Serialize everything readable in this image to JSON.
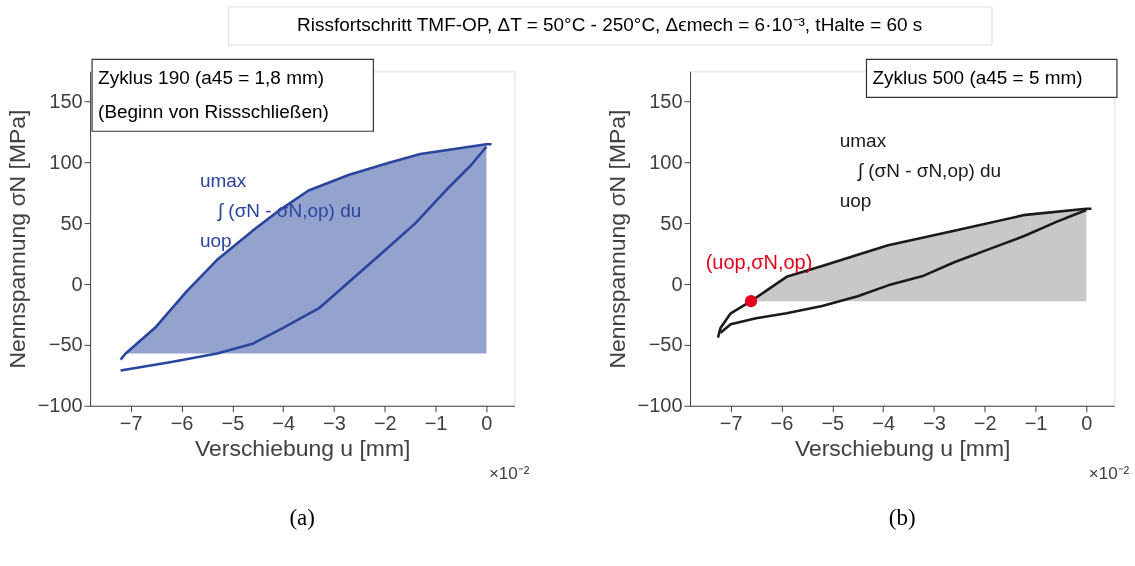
{
  "chart_data": [
    {
      "type": "other",
      "title": "Rissfortschritt TMF-OP,  ΔT = 50°C - 250°C,  Δϵmech = 6·10⁻³, tHalte = 60 s"
    },
    {
      "type": "line",
      "title": "Zyklus 190 (a45 = 1,8 mm)",
      "subtitle": "(Beginn von Rissschließen)",
      "xlabel": "Verschiebung u [mm]",
      "ylabel": "Nennspannung σN [MPa]",
      "xlim": [
        -7.8,
        0.55
      ],
      "ylim": [
        -100,
        175
      ],
      "xticks": [
        -7,
        -6,
        -5,
        -4,
        -3,
        -2,
        -1,
        0
      ],
      "yticks": [
        -100,
        -50,
        0,
        50,
        100,
        150
      ],
      "grid": false,
      "series": [
        {
          "color": "#2a459e",
          "x": [
            -7.2,
            -7.1,
            -6.5,
            -5.9,
            -5.3,
            -4.6,
            -4.1,
            -3.5,
            -2.7,
            -1.9,
            -1.3,
            0,
            0.1
          ],
          "values": [
            -62,
            -57,
            -35,
            -6,
            20,
            44,
            60,
            77,
            90,
            100,
            107,
            115,
            115
          ],
          "lower": [
            null,
            -57,
            -57,
            -57,
            -57,
            -57,
            -57,
            -57,
            -57,
            -57,
            -57,
            -57,
            null
          ],
          "upper": [
            null,
            -57,
            -35,
            -6,
            20,
            44,
            60,
            77,
            90,
            100,
            107,
            115,
            null
          ]
        },
        {
          "color": "#2a459e",
          "x": [
            -7.2,
            -6.2,
            -5.3,
            -4.6,
            -4,
            -3.3,
            -2.7,
            -2.1,
            -1.4,
            -0.8,
            -0.3,
            0
          ],
          "values": [
            -71,
            -64,
            -57,
            -49,
            -36,
            -20,
            2,
            24,
            50,
            77,
            98,
            113
          ]
        }
      ],
      "annotations": [
        "umax",
        "∫ (σN - σN,op) du",
        "uop",
        "×10⁻²",
        "(a)"
      ]
    },
    {
      "type": "line",
      "title": "Zyklus 500 (a45 = 5 mm)",
      "xlabel": "Verschiebung u [mm]",
      "ylabel": "Nennspannung σN [MPa]",
      "xlim": [
        -7.8,
        0.55
      ],
      "ylim": [
        -100,
        175
      ],
      "xticks": [
        -7,
        -6,
        -5,
        -4,
        -3,
        -2,
        -1,
        0
      ],
      "yticks": [
        -100,
        -50,
        0,
        50,
        100,
        150
      ],
      "grid": false,
      "series": [
        {
          "color": "#1a1a1a",
          "x": [
            -7.25,
            -7.2,
            -7,
            -6.6,
            -5.9,
            -5.2,
            -3.9,
            -2.6,
            -1.2,
            0,
            0.1
          ],
          "values": [
            -44,
            -36,
            -24,
            -14,
            6,
            15,
            32,
            44,
            57,
            62,
            62
          ],
          "lower": [
            null,
            null,
            null,
            -14,
            -14,
            -14,
            -14,
            -14,
            -14,
            -14,
            null
          ],
          "upper": [
            null,
            null,
            null,
            -14,
            6,
            15,
            32,
            44,
            57,
            62,
            null
          ]
        },
        {
          "color": "#1a1a1a",
          "x": [
            -7.2,
            -7,
            -6.5,
            -5.9,
            -5.2,
            -4.5,
            -3.9,
            -3.2,
            -2.6,
            -1.9,
            -1.2,
            -0.6,
            -0.3,
            0
          ],
          "values": [
            -40,
            -33,
            -28,
            -24,
            -18,
            -10,
            -1,
            7,
            18,
            29,
            40,
            51,
            56,
            61
          ]
        },
        {
          "type": "scatter",
          "name": "(uop,σN,op)",
          "color": "#e3001b",
          "marker": "circle",
          "x": [
            -6.6
          ],
          "values": [
            -14
          ]
        }
      ],
      "annotations": [
        "umax",
        "∫ (σN - σN,op) du",
        "uop",
        "×10⁻²",
        "(b)"
      ]
    }
  ]
}
